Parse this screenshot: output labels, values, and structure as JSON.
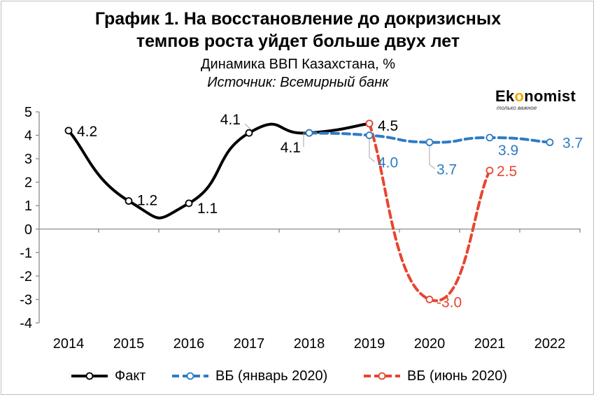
{
  "title_line1": "График 1. На восстановление до докризисных",
  "title_line2": "темпов роста уйдет больше двух лет",
  "subtitle": "Динамика ВВП Казахстана, %",
  "source": "Источник: Всемирный банк",
  "logo": {
    "name_prefix": "Ek",
    "name_accent": "o",
    "name_suffix": "nomist",
    "tagline": "только важное"
  },
  "colors": {
    "fact": "#000000",
    "wb_jan": "#2e7bc4",
    "wb_jun": "#e8452e"
  },
  "chart_data": {
    "type": "line",
    "x": [
      "2014",
      "2015",
      "2016",
      "2017",
      "2018",
      "2019",
      "2020",
      "2021",
      "2022"
    ],
    "ylim": [
      -4,
      5
    ],
    "yticks": [
      "5",
      "4",
      "3",
      "2",
      "1",
      "0",
      "-1",
      "-2",
      "-3",
      "-4"
    ],
    "series": [
      {
        "name": "Факт",
        "x": [
          "2014",
          "2015",
          "2016",
          "2017",
          "2018",
          "2019"
        ],
        "values": [
          4.2,
          1.2,
          1.1,
          4.1,
          4.1,
          4.5
        ],
        "labels": [
          "4.2",
          "1.2",
          "1.1",
          "4.1",
          "4.1",
          "4.5"
        ]
      },
      {
        "name": "ВБ (январь 2020)",
        "x": [
          "2018",
          "2019",
          "2020",
          "2021",
          "2022"
        ],
        "values": [
          4.1,
          4.0,
          3.7,
          3.9,
          3.7
        ],
        "labels": [
          "",
          "4.0",
          "3.7",
          "3.9",
          "3.7"
        ]
      },
      {
        "name": "ВБ (июнь 2020)",
        "x": [
          "2019",
          "2020",
          "2021"
        ],
        "values": [
          4.5,
          -3.0,
          2.5
        ],
        "labels": [
          "",
          "-3.0",
          "2.5"
        ]
      }
    ],
    "legend_position": "bottom"
  }
}
